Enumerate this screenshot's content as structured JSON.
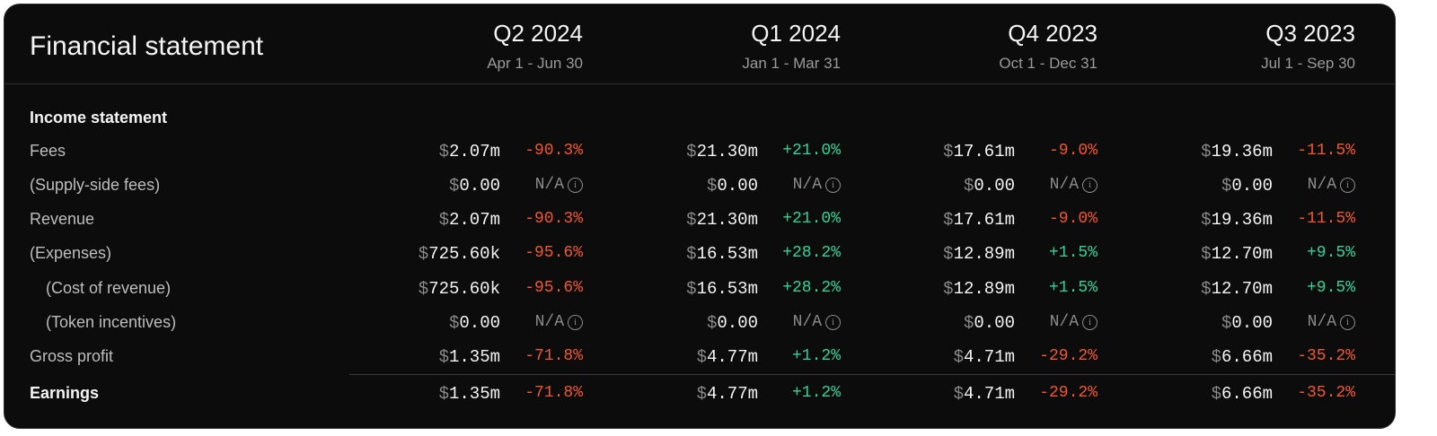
{
  "title": "Financial statement",
  "colors": {
    "negative": "#f0582c",
    "positive": "#2fd39b"
  },
  "quarters": [
    {
      "label": "Q2 2024",
      "range": "Apr 1 - Jun 30"
    },
    {
      "label": "Q1 2024",
      "range": "Jan 1 - Mar 31"
    },
    {
      "label": "Q4 2023",
      "range": "Oct 1 - Dec 31"
    },
    {
      "label": "Q3 2023",
      "range": "Jul 1 - Sep 30"
    }
  ],
  "currency_symbol": "$",
  "info_icon": "info-circle-icon",
  "rows": [
    {
      "label": "Income statement",
      "type": "section"
    },
    {
      "label": "Fees",
      "cells": [
        {
          "v": "2.07m",
          "c": "-90.3%"
        },
        {
          "v": "21.30m",
          "c": "+21.0%"
        },
        {
          "v": "17.61m",
          "c": "-9.0%"
        },
        {
          "v": "19.36m",
          "c": "-11.5%"
        }
      ]
    },
    {
      "label": "(Supply-side fees)",
      "cells": [
        {
          "v": "0.00",
          "c": "N/A"
        },
        {
          "v": "0.00",
          "c": "N/A"
        },
        {
          "v": "0.00",
          "c": "N/A"
        },
        {
          "v": "0.00",
          "c": "N/A"
        }
      ]
    },
    {
      "label": "Revenue",
      "cells": [
        {
          "v": "2.07m",
          "c": "-90.3%"
        },
        {
          "v": "21.30m",
          "c": "+21.0%"
        },
        {
          "v": "17.61m",
          "c": "-9.0%"
        },
        {
          "v": "19.36m",
          "c": "-11.5%"
        }
      ]
    },
    {
      "label": "(Expenses)",
      "cells": [
        {
          "v": "725.60k",
          "c": "-95.6%"
        },
        {
          "v": "16.53m",
          "c": "+28.2%"
        },
        {
          "v": "12.89m",
          "c": "+1.5%"
        },
        {
          "v": "12.70m",
          "c": "+9.5%"
        }
      ]
    },
    {
      "label": "(Cost of revenue)",
      "indent": true,
      "cells": [
        {
          "v": "725.60k",
          "c": "-95.6%"
        },
        {
          "v": "16.53m",
          "c": "+28.2%"
        },
        {
          "v": "12.89m",
          "c": "+1.5%"
        },
        {
          "v": "12.70m",
          "c": "+9.5%"
        }
      ]
    },
    {
      "label": "(Token incentives)",
      "indent": true,
      "cells": [
        {
          "v": "0.00",
          "c": "N/A"
        },
        {
          "v": "0.00",
          "c": "N/A"
        },
        {
          "v": "0.00",
          "c": "N/A"
        },
        {
          "v": "0.00",
          "c": "N/A"
        }
      ]
    },
    {
      "label": "Gross profit",
      "cells": [
        {
          "v": "1.35m",
          "c": "-71.8%"
        },
        {
          "v": "4.77m",
          "c": "+1.2%"
        },
        {
          "v": "4.71m",
          "c": "-29.2%"
        },
        {
          "v": "6.66m",
          "c": "-35.2%"
        }
      ]
    },
    {
      "label": "Earnings",
      "type": "total",
      "cells": [
        {
          "v": "1.35m",
          "c": "-71.8%"
        },
        {
          "v": "4.77m",
          "c": "+1.2%"
        },
        {
          "v": "4.71m",
          "c": "-29.2%"
        },
        {
          "v": "6.66m",
          "c": "-35.2%"
        }
      ]
    }
  ]
}
